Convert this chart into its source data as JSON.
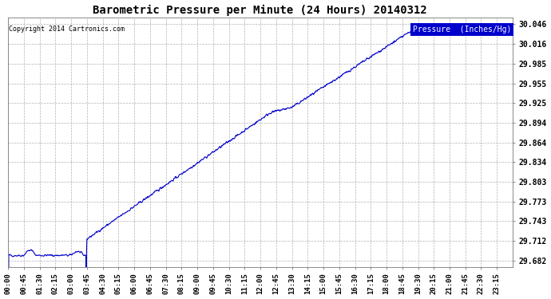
{
  "title": "Barometric Pressure per Minute (24 Hours) 20140312",
  "copyright_text": "Copyright 2014 Cartronics.com",
  "legend_label": "Pressure  (Inches/Hg)",
  "line_color": "#0000cc",
  "background_color": "#ffffff",
  "grid_color": "#aaaaaa",
  "yticks": [
    29.682,
    29.712,
    29.743,
    29.773,
    29.803,
    29.834,
    29.864,
    29.894,
    29.925,
    29.955,
    29.985,
    30.016,
    30.046
  ],
  "ylim": [
    29.672,
    30.056
  ],
  "xtick_labels": [
    "00:00",
    "00:45",
    "01:30",
    "02:15",
    "03:00",
    "03:45",
    "04:30",
    "05:15",
    "06:00",
    "06:45",
    "07:30",
    "08:15",
    "09:00",
    "09:45",
    "10:30",
    "11:15",
    "12:00",
    "12:45",
    "13:30",
    "14:15",
    "15:00",
    "15:45",
    "16:30",
    "17:15",
    "18:00",
    "18:45",
    "19:30",
    "20:15",
    "21:00",
    "21:45",
    "22:30",
    "23:15"
  ],
  "font_family": "monospace",
  "figsize": [
    6.9,
    3.75
  ],
  "dpi": 100
}
